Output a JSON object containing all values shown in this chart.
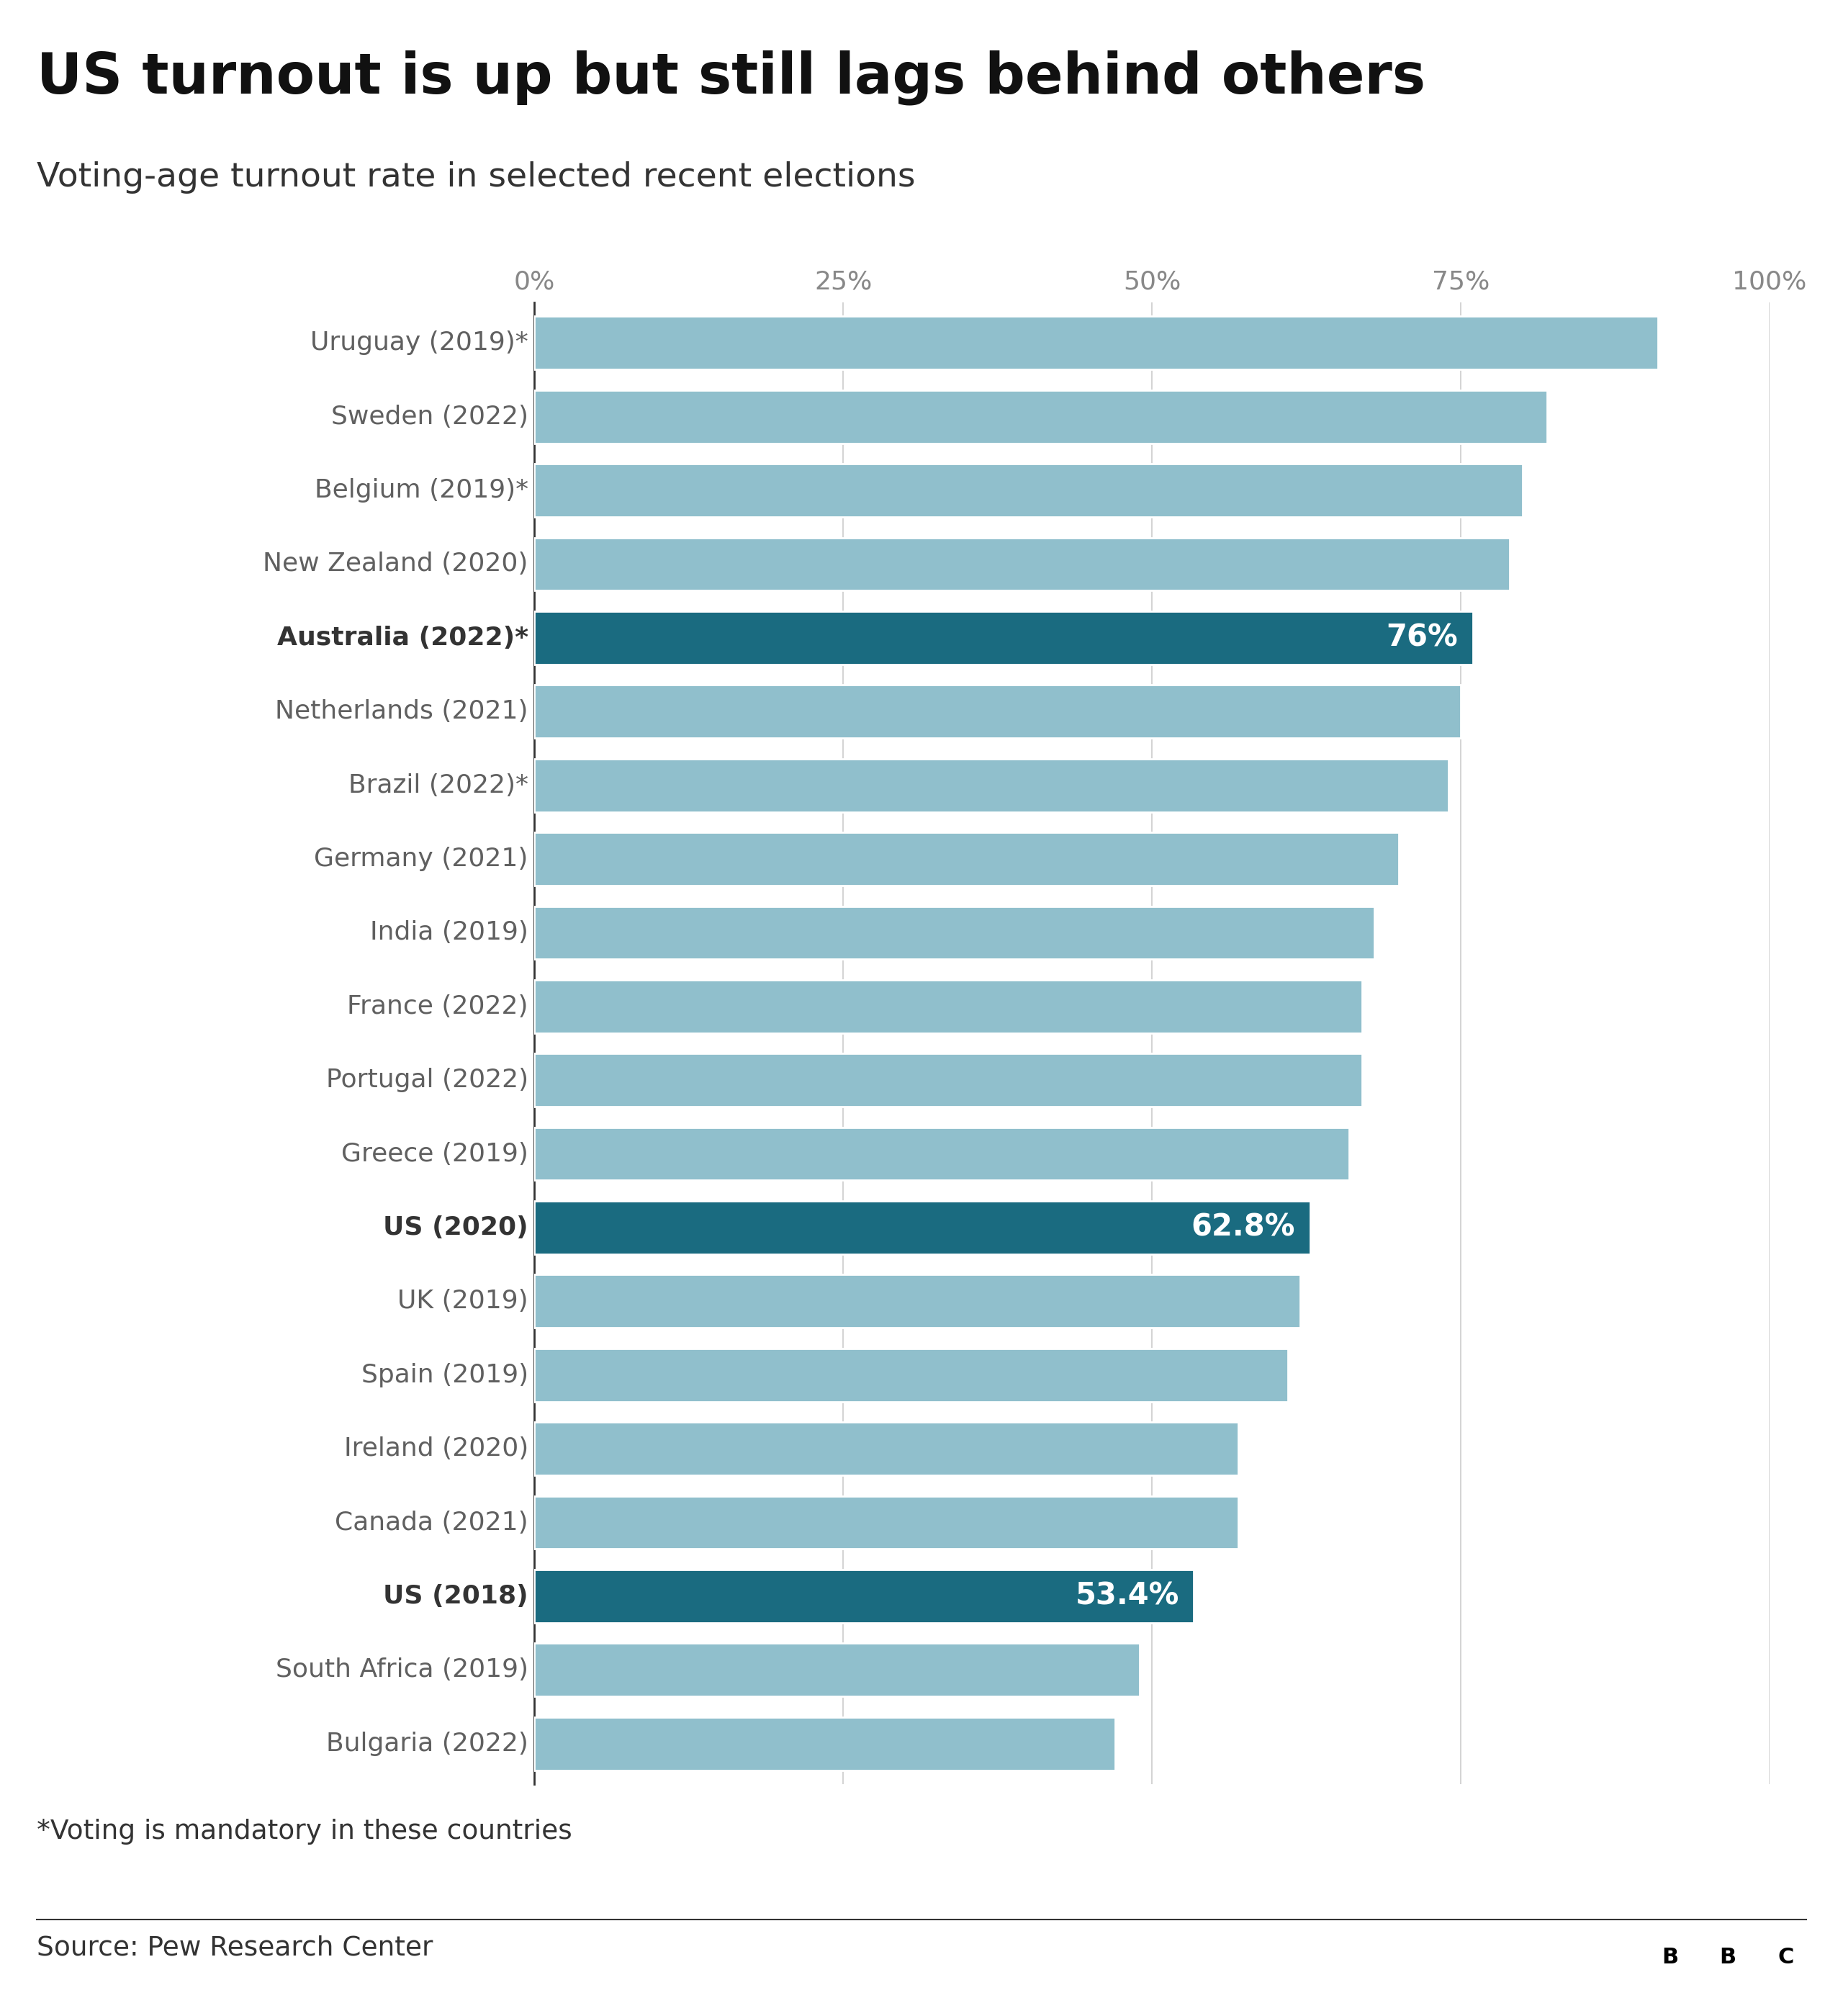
{
  "title": "US turnout is up but still lags behind others",
  "subtitle": "Voting-age turnout rate in selected recent elections",
  "footnote": "*Voting is mandatory in these countries",
  "source": "Source: Pew Research Center",
  "categories": [
    "Uruguay (2019)*",
    "Sweden (2022)",
    "Belgium (2019)*",
    "New Zealand (2020)",
    "Australia (2022)*",
    "Netherlands (2021)",
    "Brazil (2022)*",
    "Germany (2021)",
    "India (2019)",
    "France (2022)",
    "Portugal (2022)",
    "Greece (2019)",
    "US (2020)",
    "UK (2019)",
    "Spain (2019)",
    "Ireland (2020)",
    "Canada (2021)",
    "US (2018)",
    "South Africa (2019)",
    "Bulgaria (2022)"
  ],
  "values": [
    91,
    82,
    80,
    79,
    76,
    75,
    74,
    70,
    68,
    67,
    67,
    66,
    62.8,
    62,
    61,
    57,
    57,
    53.4,
    49,
    47
  ],
  "highlight_indices": [
    4,
    12,
    17
  ],
  "highlight_labels": [
    "76%",
    "62.8%",
    "53.4%"
  ],
  "bar_color_normal": "#90bfcc",
  "bar_color_highlight": "#1a6b80",
  "background_color": "#ffffff",
  "text_color_normal": "#606060",
  "text_color_bold": "#333333",
  "title_color": "#111111",
  "subtitle_color": "#333333",
  "footnote_color": "#333333",
  "source_color": "#333333",
  "xlim": [
    0,
    100
  ],
  "xticks": [
    0,
    25,
    50,
    75,
    100
  ],
  "xticklabels": [
    "0%",
    "25%",
    "50%",
    "75%",
    "100%"
  ],
  "grid_color": "#cccccc",
  "spine_color": "#333333",
  "bar_height": 0.72,
  "bar_gap": 0.28
}
